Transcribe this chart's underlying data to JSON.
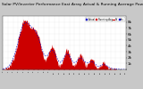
{
  "title": "Solar PV/Inverter Performance East Array Actual & Running Average Power Output",
  "bg_color": "#c8c8c8",
  "plot_bg": "#ffffff",
  "grid_color": "#bbbbbb",
  "area_color": "#cc0000",
  "avg_color": "#0000cc",
  "ylim": [
    0,
    9
  ],
  "ytick_labels": [
    "",
    "1k",
    "2k",
    "3k",
    "4k",
    "5k",
    "6k",
    "7k",
    "8k"
  ],
  "ytick_vals": [
    0,
    1,
    2,
    3,
    4,
    5,
    6,
    7,
    8
  ],
  "ylabel_fontsize": 3.0,
  "title_fontsize": 3.2,
  "n_points": 300,
  "figsize": [
    1.6,
    1.0
  ],
  "dpi": 100
}
